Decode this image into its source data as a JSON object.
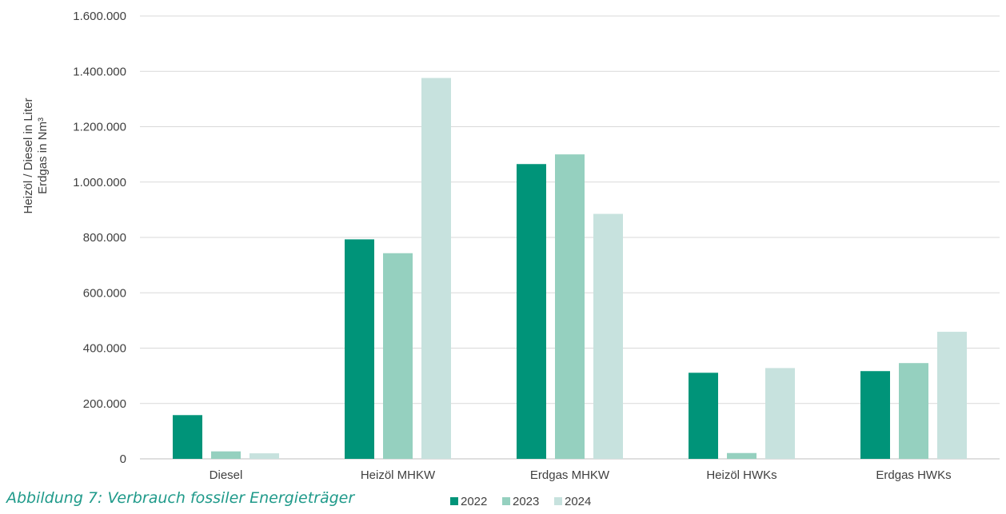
{
  "caption": "Abbildung 7: Verbrauch fossiler Energieträger",
  "chart_data": {
    "type": "bar",
    "title": "",
    "ylabel_lines": [
      "Heizöl / Diesel in Liter",
      "Erdgas in Nm³"
    ],
    "xlabel": "",
    "ylim": [
      0,
      1600000
    ],
    "yticks": [
      0,
      200000,
      400000,
      600000,
      800000,
      1000000,
      1200000,
      1400000,
      1600000
    ],
    "ytick_labels": [
      "0",
      "200.000",
      "400.000",
      "600.000",
      "800.000",
      "1.000.000",
      "1.200.000",
      "1.400.000",
      "1.600.000"
    ],
    "categories": [
      "Diesel",
      "Heizöl MHKW",
      "Erdgas MHKW",
      "Heizöl HWKs",
      "Erdgas HWKs"
    ],
    "series": [
      {
        "name": "2022",
        "color": "#009479",
        "values": [
          158000,
          793000,
          1065000,
          311000,
          317000
        ]
      },
      {
        "name": "2023",
        "color": "#95d0bf",
        "values": [
          27000,
          743000,
          1100000,
          21000,
          346000
        ]
      },
      {
        "name": "2024",
        "color": "#c7e2de",
        "values": [
          20000,
          1376000,
          885000,
          328000,
          459000
        ]
      }
    ],
    "grid": true,
    "legend_position": "bottom"
  }
}
